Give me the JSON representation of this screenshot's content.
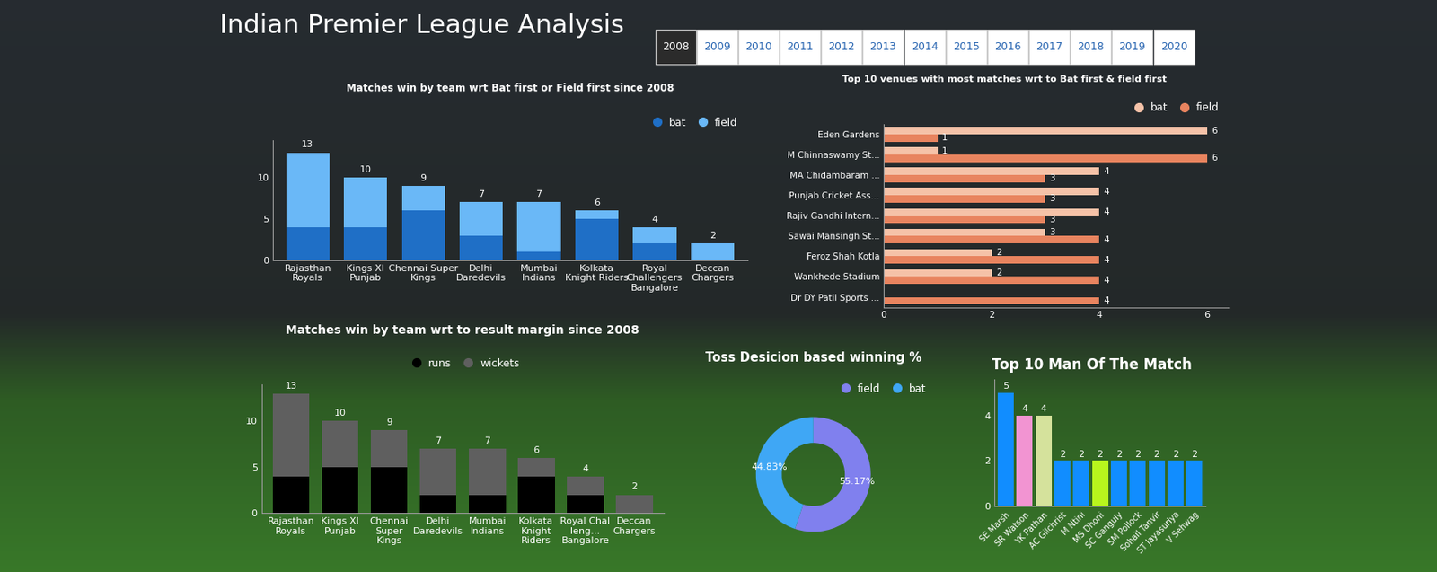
{
  "title": "Indian Premier League Analysis",
  "year_buttons": {
    "years": [
      "2008",
      "2009",
      "2010",
      "2011",
      "2012",
      "2013",
      "2014",
      "2015",
      "2016",
      "2017",
      "2018",
      "2019",
      "2020"
    ],
    "selected": "2008"
  },
  "chart_data": [
    {
      "type": "bar",
      "title": "Matches win by team wrt Bat first or Field first since 2008",
      "stacked": true,
      "data_labels": false,
      "legend": "upper right",
      "grid": false,
      "categories": [
        "Rajasthan Royals",
        "Kings XI Punjab",
        "Chennai Super Kings",
        "Delhi Daredevils",
        "Mumbai Indians",
        "Kolkata Knight Riders",
        "Royal Challengers Bangalore",
        "Deccan Chargers"
      ],
      "series": [
        {
          "name": "bat",
          "color": "#1f6fc6",
          "values": [
            4,
            4,
            6,
            3,
            1,
            5,
            2,
            0
          ]
        },
        {
          "name": "field",
          "color": "#6ab8f7",
          "values": [
            9,
            6,
            3,
            4,
            6,
            1,
            2,
            2
          ]
        }
      ],
      "total_labels": [
        13,
        10,
        9,
        7,
        7,
        6,
        4,
        2
      ],
      "ylim": [
        0,
        14.5
      ],
      "yticks": [
        0,
        5,
        10
      ]
    },
    {
      "type": "bar",
      "title": "Top 10 venues with most matches wrt to Bat first & field first",
      "orientation": "horizontal",
      "data_labels": true,
      "legend": "upper right",
      "grid": false,
      "categories": [
        "Eden Gardens",
        "M Chinnaswamy St...",
        "MA Chidambaram ...",
        "Punjab Cricket Ass...",
        "Rajiv Gandhi Intern...",
        "Sawai Mansingh St...",
        "Feroz Shah Kotla",
        "Wankhede Stadium",
        "Dr DY Patil Sports ..."
      ],
      "series": [
        {
          "name": "bat",
          "color": "#f5c2a8",
          "values": [
            6,
            1,
            4,
            4,
            4,
            3,
            2,
            2,
            null
          ]
        },
        {
          "name": "field",
          "color": "#e8845f",
          "values": [
            1,
            6,
            3,
            3,
            3,
            4,
            4,
            4,
            4
          ]
        }
      ],
      "xlim": [
        0,
        6.4
      ],
      "xticks": [
        0,
        2,
        4,
        6
      ]
    },
    {
      "type": "bar",
      "title": "Matches win by team wrt to result margin since 2008",
      "stacked": true,
      "data_labels": false,
      "legend": "upper center",
      "grid": false,
      "categories": [
        "Rajasthan Royals",
        "Kings XI Punjab",
        "Chennai Super Kings",
        "Delhi Daredevils",
        "Mumbai Indians",
        "Kolkata Knight Riders",
        "Royal Challeng... Bangalore",
        "Deccan Chargers"
      ],
      "series": [
        {
          "name": "runs",
          "color": "#000000",
          "values": [
            4,
            5,
            5,
            2,
            2,
            4,
            2,
            0
          ]
        },
        {
          "name": "wickets",
          "color": "#5f5f5f",
          "values": [
            9,
            5,
            4,
            5,
            5,
            2,
            2,
            2
          ]
        }
      ],
      "total_labels": [
        13,
        10,
        9,
        7,
        7,
        6,
        4,
        2
      ],
      "ylim": [
        0,
        14
      ],
      "yticks": [
        0,
        5,
        10
      ]
    },
    {
      "type": "pie",
      "title": "Toss Desicion based winning %",
      "legend": "upper right",
      "categories": [
        "field",
        "bat"
      ],
      "values": [
        55.17,
        44.83
      ],
      "value_labels": [
        "55.17%",
        "44.83%"
      ],
      "colors": [
        "#8080ee",
        "#3fa7f5"
      ]
    },
    {
      "type": "bar",
      "title": "Top 10 Man Of The Match",
      "data_labels": true,
      "grid": false,
      "categories": [
        "SE Marsh",
        "SR Watson",
        "YK Pathan",
        "AC Gilchrist",
        "M Ntini",
        "MS Dhoni",
        "SC Ganguly",
        "SM Pollock",
        "Sohail Tanvir",
        "ST Jayasuriya",
        "V Sehwag"
      ],
      "values": [
        5,
        4,
        4,
        2,
        2,
        2,
        2,
        2,
        2,
        2,
        2
      ],
      "colors": [
        "#118dff",
        "#f294d2",
        "#d5e29c",
        "#118dff",
        "#118dff",
        "#b8f51d",
        "#118dff",
        "#118dff",
        "#118dff",
        "#118dff",
        "#118dff"
      ],
      "ylim": [
        0,
        5.6
      ],
      "yticks": [
        0,
        2,
        4
      ]
    }
  ]
}
